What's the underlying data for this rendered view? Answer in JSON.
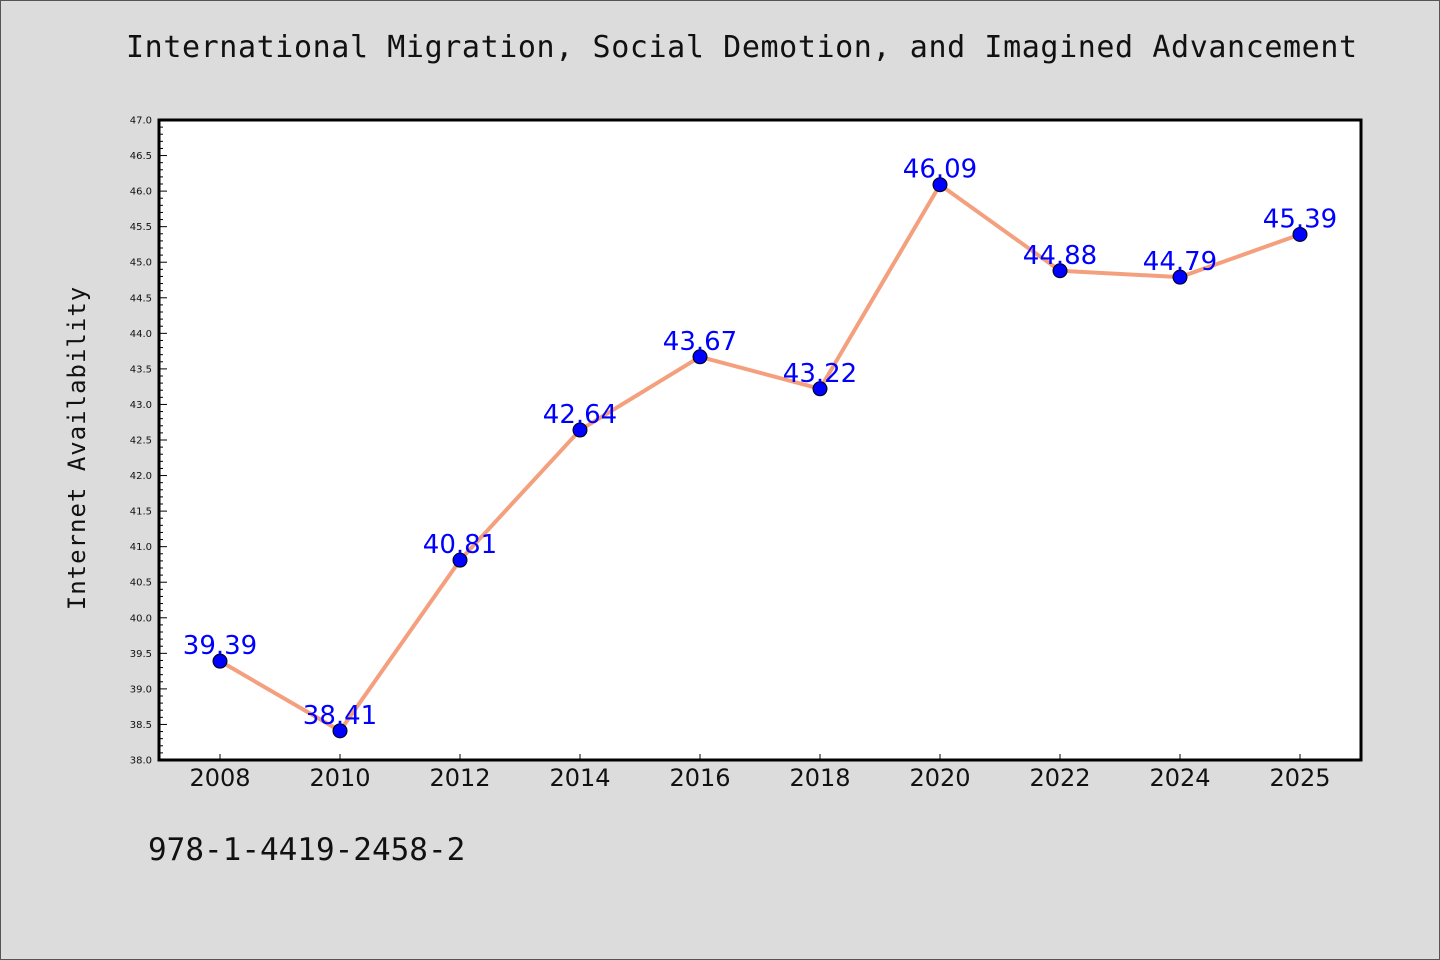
{
  "title": "International Migration, Social Demotion, and Imagined Advancement",
  "footer_text": "978-1-4419-2458-2",
  "chart_data": {
    "type": "line",
    "title": "International Migration, Social Demotion, and Imagined Advancement",
    "xlabel": "",
    "ylabel": "Internet Availability",
    "categories": [
      "2008",
      "2010",
      "2012",
      "2014",
      "2016",
      "2018",
      "2020",
      "2022",
      "2024",
      "2025"
    ],
    "series": [
      {
        "values": [
          39.39,
          38.41,
          40.81,
          42.64,
          43.67,
          43.22,
          46.09,
          44.88,
          44.79,
          45.39
        ],
        "labels": [
          "39.39",
          "38.41",
          "40.81",
          "42.64",
          "43.67",
          "43.22",
          "46.09",
          "44.88",
          "44.79",
          "45.39"
        ]
      }
    ],
    "ylim": [
      38.0,
      47.0
    ],
    "yticks": [
      "38.0",
      "38.5",
      "39.0",
      "39.5",
      "40.0",
      "40.5",
      "41.0",
      "41.5",
      "42.0",
      "42.5",
      "43.0",
      "43.5",
      "44.0",
      "44.5",
      "45.0",
      "45.5",
      "46.0",
      "46.5",
      "47.0"
    ],
    "grid": false,
    "legend": "none",
    "colors": {
      "line": "#f4a07e",
      "marker": "#0000ff",
      "data_label": "#0000ff",
      "plot_background": "#ffffff",
      "figure_background": "#dcdcdc"
    }
  }
}
